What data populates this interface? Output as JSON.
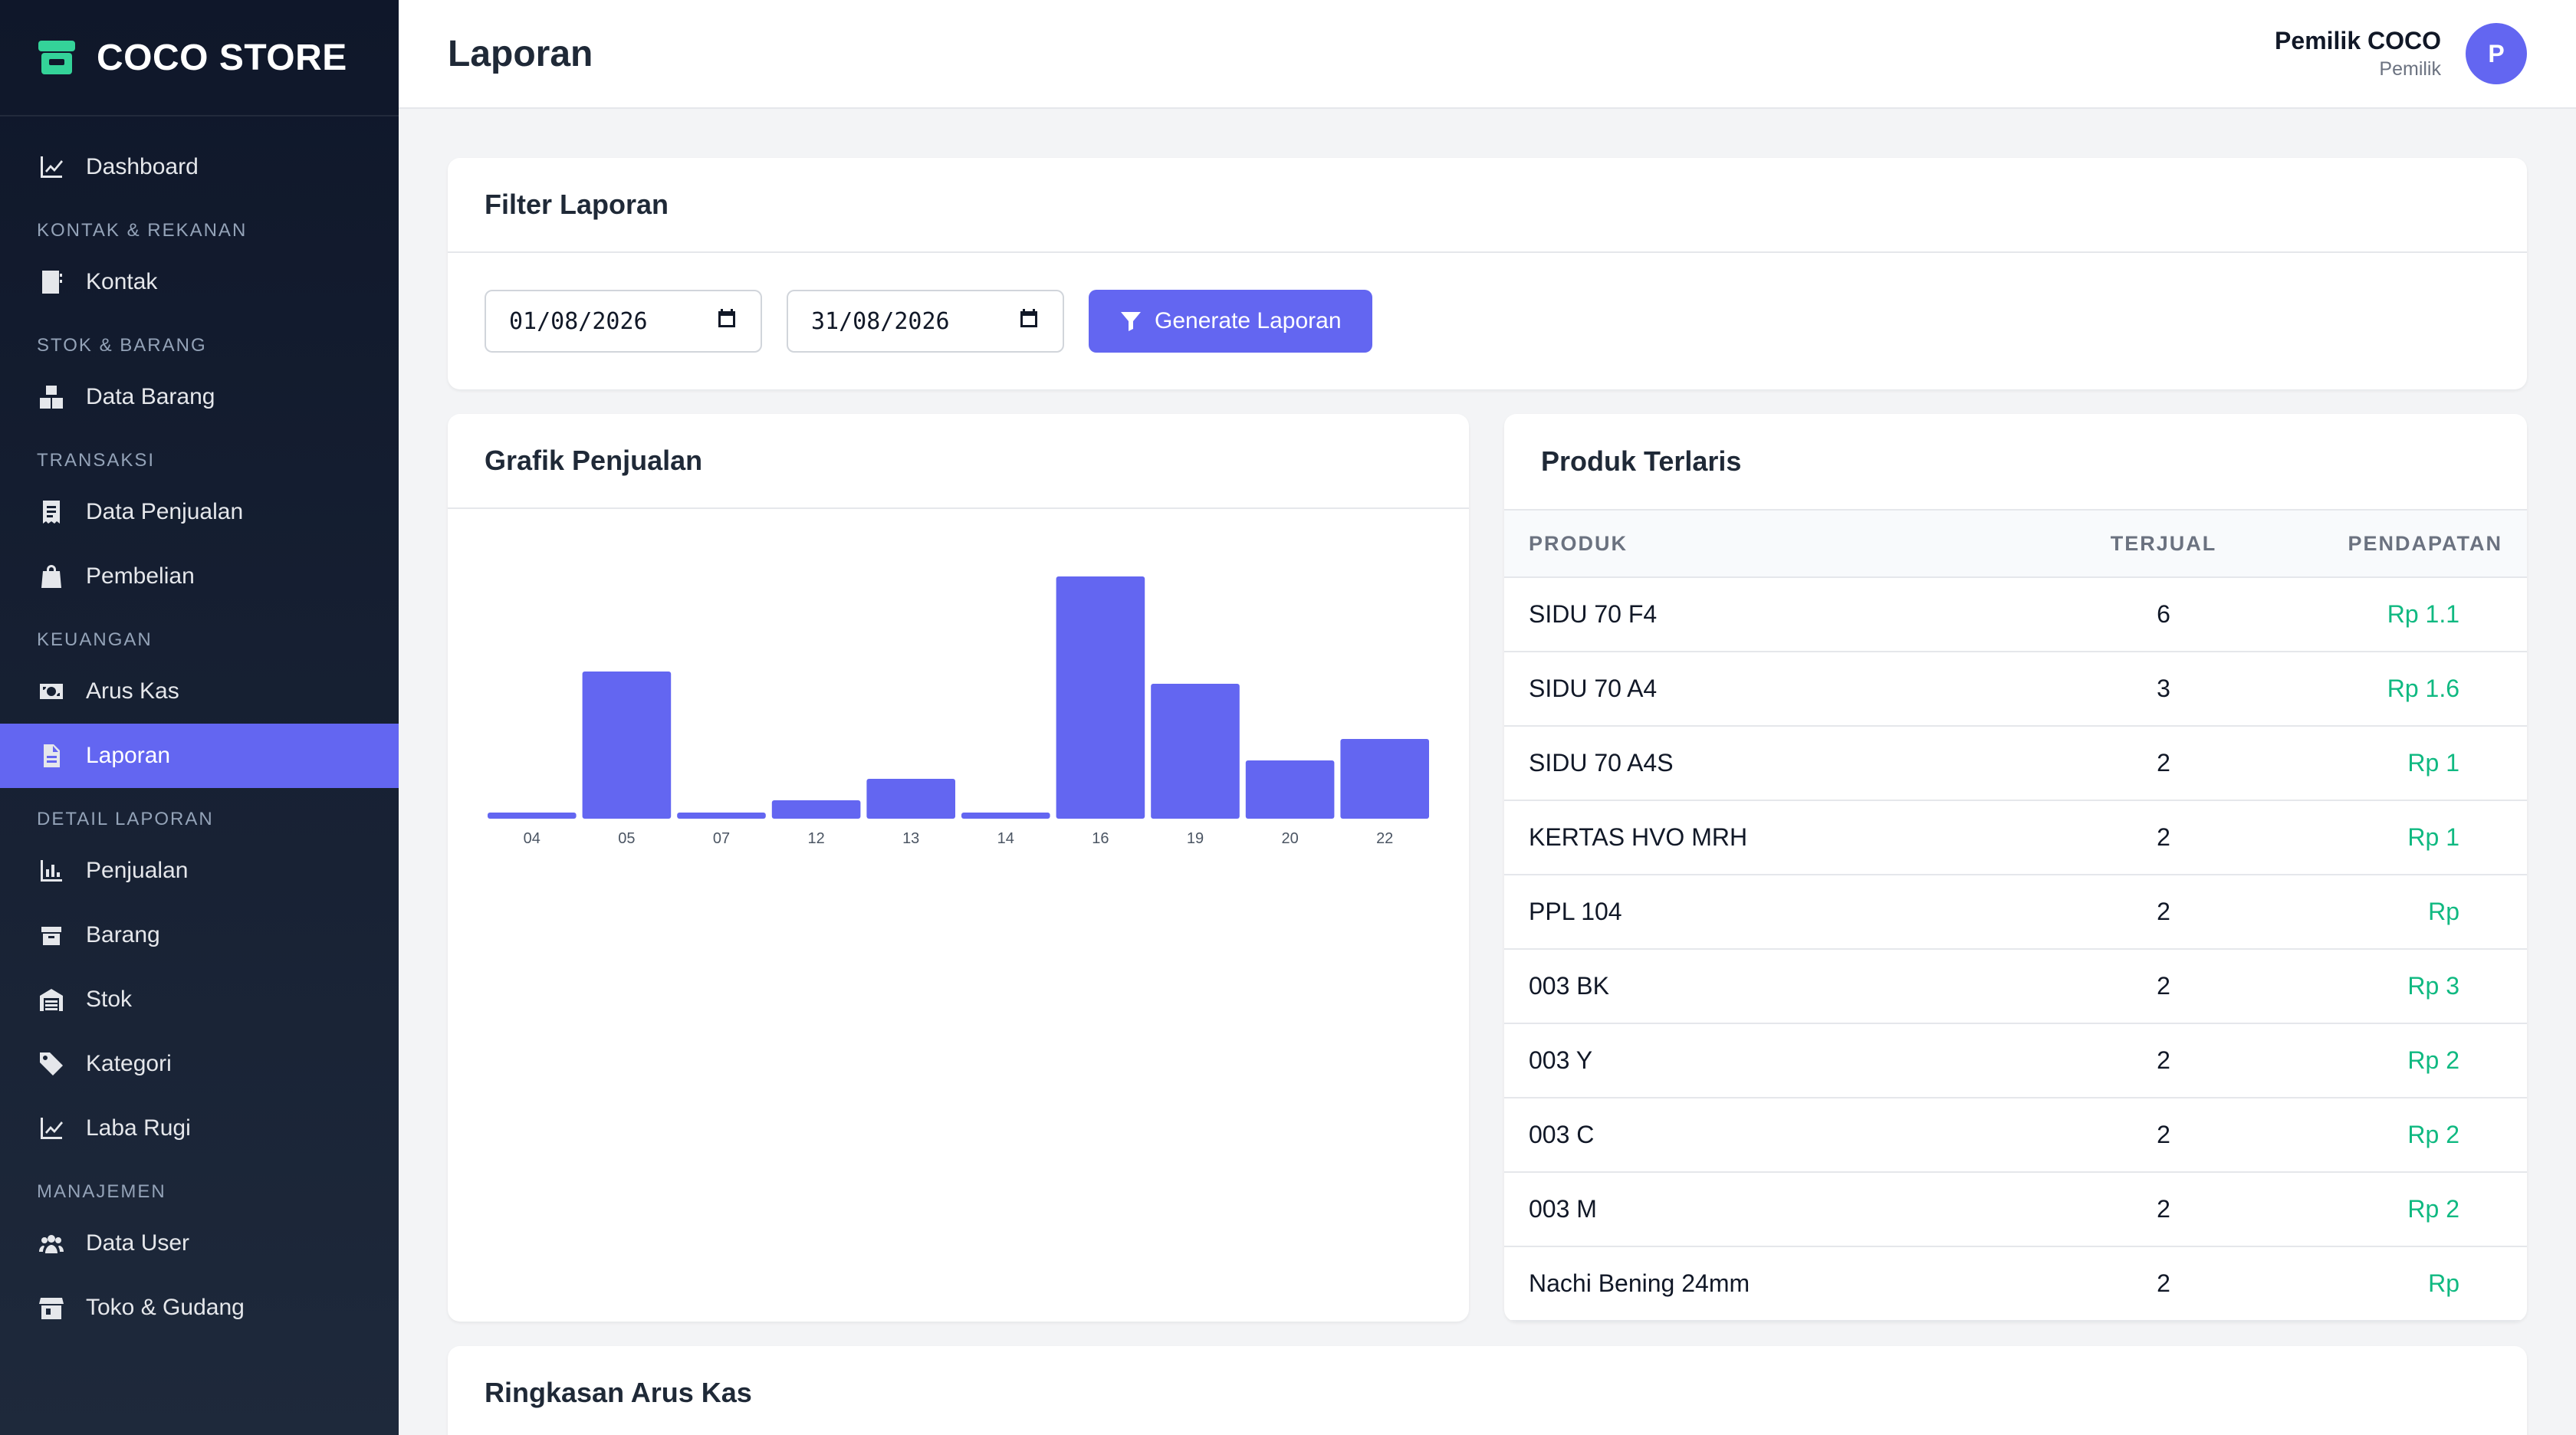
{
  "brand": {
    "name": "COCO STORE"
  },
  "sidebar": {
    "items": [
      {
        "type": "item",
        "label": "Dashboard",
        "icon": "chart-line-icon"
      },
      {
        "type": "section",
        "label": "KONTAK & REKANAN"
      },
      {
        "type": "item",
        "label": "Kontak",
        "icon": "address-book-icon"
      },
      {
        "type": "section",
        "label": "STOK & BARANG"
      },
      {
        "type": "item",
        "label": "Data Barang",
        "icon": "boxes-icon"
      },
      {
        "type": "section",
        "label": "TRANSAKSI"
      },
      {
        "type": "item",
        "label": "Data Penjualan",
        "icon": "receipt-icon"
      },
      {
        "type": "item",
        "label": "Pembelian",
        "icon": "shopping-bag-icon"
      },
      {
        "type": "section",
        "label": "KEUANGAN"
      },
      {
        "type": "item",
        "label": "Arus Kas",
        "icon": "money-bill-icon"
      },
      {
        "type": "item",
        "label": "Laporan",
        "icon": "file-icon",
        "active": true
      },
      {
        "type": "section",
        "label": "DETAIL LAPORAN"
      },
      {
        "type": "item",
        "label": "Penjualan",
        "icon": "chart-bar-icon"
      },
      {
        "type": "item",
        "label": "Barang",
        "icon": "box-icon"
      },
      {
        "type": "item",
        "label": "Stok",
        "icon": "warehouse-icon"
      },
      {
        "type": "item",
        "label": "Kategori",
        "icon": "tags-icon"
      },
      {
        "type": "item",
        "label": "Laba Rugi",
        "icon": "chart-line-icon"
      },
      {
        "type": "section",
        "label": "MANAJEMEN"
      },
      {
        "type": "item",
        "label": "Data User",
        "icon": "users-icon"
      },
      {
        "type": "item",
        "label": "Toko & Gudang",
        "icon": "store-icon"
      }
    ]
  },
  "header": {
    "title": "Laporan",
    "user_name": "Pemilik COCO",
    "user_role": "Pemilik",
    "avatar_initial": "P"
  },
  "filter": {
    "title": "Filter Laporan",
    "start_date": "01/08/2026",
    "end_date": "31/08/2026",
    "generate_label": "Generate Laporan"
  },
  "sales_chart": {
    "title": "Grafik Penjualan"
  },
  "chart_data": {
    "type": "bar",
    "categories": [
      "04",
      "05",
      "07",
      "12",
      "13",
      "14",
      "16",
      "19",
      "20",
      "22"
    ],
    "values": [
      2,
      48,
      2,
      6,
      13,
      2,
      79,
      44,
      19,
      26
    ],
    "ylim": [
      0,
      100
    ],
    "grid": false,
    "legend": "none",
    "color": "#6366f1"
  },
  "top_products": {
    "title": "Produk Terlaris",
    "columns": [
      "PRODUK",
      "TERJUAL",
      "PENDAPATAN"
    ],
    "rows": [
      {
        "product": "SIDU 70 F4",
        "sold": "6",
        "revenue": "Rp 1.1"
      },
      {
        "product": "SIDU 70 A4",
        "sold": "3",
        "revenue": "Rp 1.6"
      },
      {
        "product": "SIDU 70 A4S",
        "sold": "2",
        "revenue": "Rp 1"
      },
      {
        "product": "KERTAS HVO MRH",
        "sold": "2",
        "revenue": "Rp 1"
      },
      {
        "product": "PPL 104",
        "sold": "2",
        "revenue": "Rp"
      },
      {
        "product": "003 BK",
        "sold": "2",
        "revenue": "Rp 3"
      },
      {
        "product": "003 Y",
        "sold": "2",
        "revenue": "Rp 2"
      },
      {
        "product": "003 C",
        "sold": "2",
        "revenue": "Rp 2"
      },
      {
        "product": "003 M",
        "sold": "2",
        "revenue": "Rp 2"
      },
      {
        "product": "Nachi Bening 24mm",
        "sold": "2",
        "revenue": "Rp"
      }
    ]
  },
  "cash_summary": {
    "title": "Ringkasan Arus Kas"
  }
}
